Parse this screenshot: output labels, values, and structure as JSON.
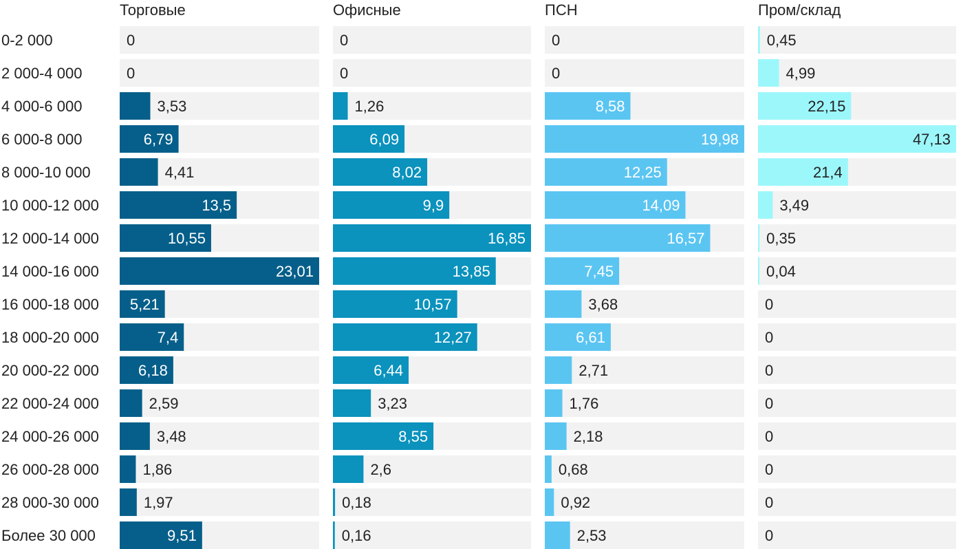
{
  "chart_data": {
    "type": "bar",
    "orientation": "horizontal",
    "layout": "small-multiples",
    "title": "",
    "xlabel": "",
    "ylabel": "",
    "categories": [
      "0-2 000",
      "2 000-4 000",
      "4 000-6 000",
      "6 000-8 000",
      "8 000-10 000",
      "10 000-12 000",
      "12 000-14 000",
      "14 000-16 000",
      "16 000-18 000",
      "18 000-20 000",
      "20 000-22 000",
      "22 000-24 000",
      "24 000-26 000",
      "26 000-28 000",
      "28 000-30 000",
      "Более 30 000"
    ],
    "series": [
      {
        "name": "Торговые",
        "color": "#065f8a",
        "max": 23.01,
        "values": [
          0,
          0,
          3.53,
          6.79,
          4.41,
          13.5,
          10.55,
          23.01,
          5.21,
          7.4,
          6.18,
          2.59,
          3.48,
          1.86,
          1.97,
          9.51
        ],
        "labels": [
          "0",
          "0",
          "3,53",
          "6,79",
          "4,41",
          "13,5",
          "10,55",
          "23,01",
          "5,21",
          "7,4",
          "6,18",
          "2,59",
          "3,48",
          "1,86",
          "1,97",
          "9,51"
        ]
      },
      {
        "name": "Офисные",
        "color": "#0b92bd",
        "max": 16.85,
        "values": [
          0,
          0,
          1.26,
          6.09,
          8.02,
          9.9,
          16.85,
          13.85,
          10.57,
          12.27,
          6.44,
          3.23,
          8.55,
          2.6,
          0.18,
          0.16
        ],
        "labels": [
          "0",
          "0",
          "1,26",
          "6,09",
          "8,02",
          "9,9",
          "16,85",
          "13,85",
          "10,57",
          "12,27",
          "6,44",
          "3,23",
          "8,55",
          "2,6",
          "0,18",
          "0,16"
        ]
      },
      {
        "name": "ПСН",
        "color": "#5bc5f2",
        "max": 19.98,
        "values": [
          0,
          0,
          8.58,
          19.98,
          12.25,
          14.09,
          16.57,
          7.45,
          3.68,
          6.61,
          2.71,
          1.76,
          2.18,
          0.68,
          0.92,
          2.53
        ],
        "labels": [
          "0",
          "0",
          "8,58",
          "19,98",
          "12,25",
          "14,09",
          "16,57",
          "7,45",
          "3,68",
          "6,61",
          "2,71",
          "1,76",
          "2,18",
          "0,68",
          "0,92",
          "2,53"
        ]
      },
      {
        "name": "Пром/склад",
        "color": "#9cf7fb",
        "max": 47.13,
        "values": [
          0.45,
          4.99,
          22.15,
          47.13,
          21.4,
          3.49,
          0.35,
          0.04,
          0,
          0,
          0,
          0,
          0,
          0,
          0,
          0
        ],
        "labels": [
          "0,45",
          "4,99",
          "22,15",
          "47,13",
          "21,4",
          "3,49",
          "0,35",
          "0,04",
          "0",
          "0",
          "0",
          "0",
          "0",
          "0",
          "0",
          "0"
        ]
      }
    ],
    "colors": {
      "track": "#f2f2f2",
      "text_dark": "#222222",
      "text_light": "#ffffff"
    }
  }
}
